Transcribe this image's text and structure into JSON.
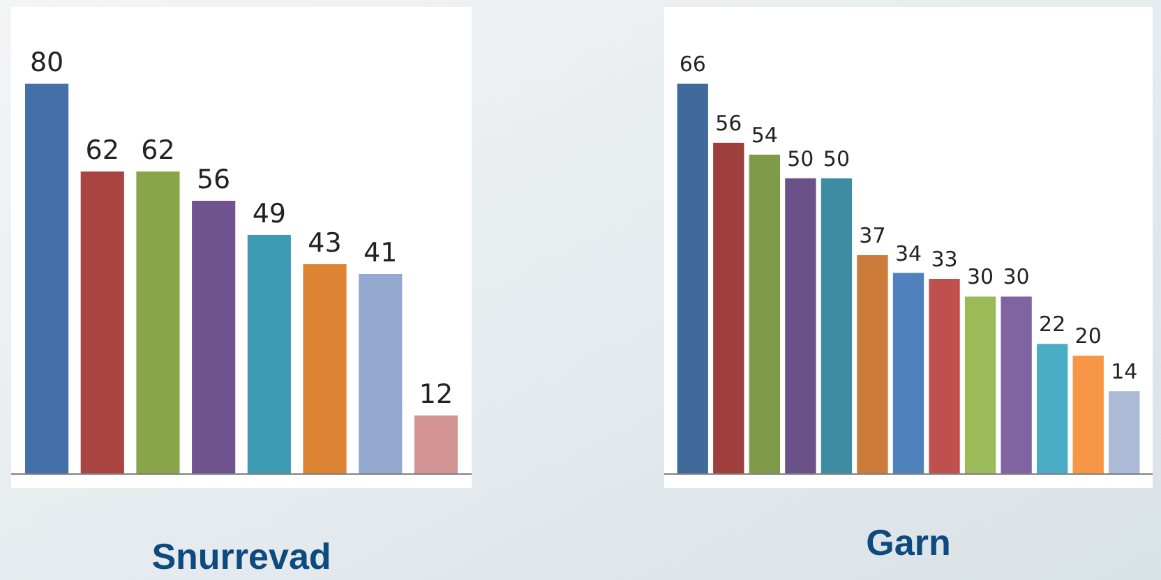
{
  "chart_data": [
    {
      "type": "bar",
      "title": "Snurrevad",
      "categories": [
        null,
        null,
        null,
        null,
        null,
        null,
        null,
        null
      ],
      "values": [
        80,
        62,
        62,
        56,
        49,
        43,
        41,
        12
      ],
      "colors": [
        "#4470a8",
        "#a94442",
        "#88a54a",
        "#6f5490",
        "#3f9ab4",
        "#dd8434",
        "#93a9d0",
        "#d49494"
      ],
      "data_labels": true
    },
    {
      "type": "bar",
      "title": "Garn",
      "categories": [
        null,
        null,
        null,
        null,
        null,
        null,
        null,
        null,
        null,
        null,
        null,
        null,
        null
      ],
      "values": [
        66,
        56,
        54,
        50,
        50,
        37,
        34,
        33,
        30,
        30,
        22,
        20,
        14
      ],
      "colors": [
        "#416a9c",
        "#9e3e3d",
        "#7f9a48",
        "#6a5187",
        "#3d8ca1",
        "#cc7b3a",
        "#4f81bd",
        "#c0504d",
        "#9bbb59",
        "#8064a2",
        "#4bacc6",
        "#f79646",
        "#aabad7"
      ],
      "data_labels": true
    }
  ]
}
